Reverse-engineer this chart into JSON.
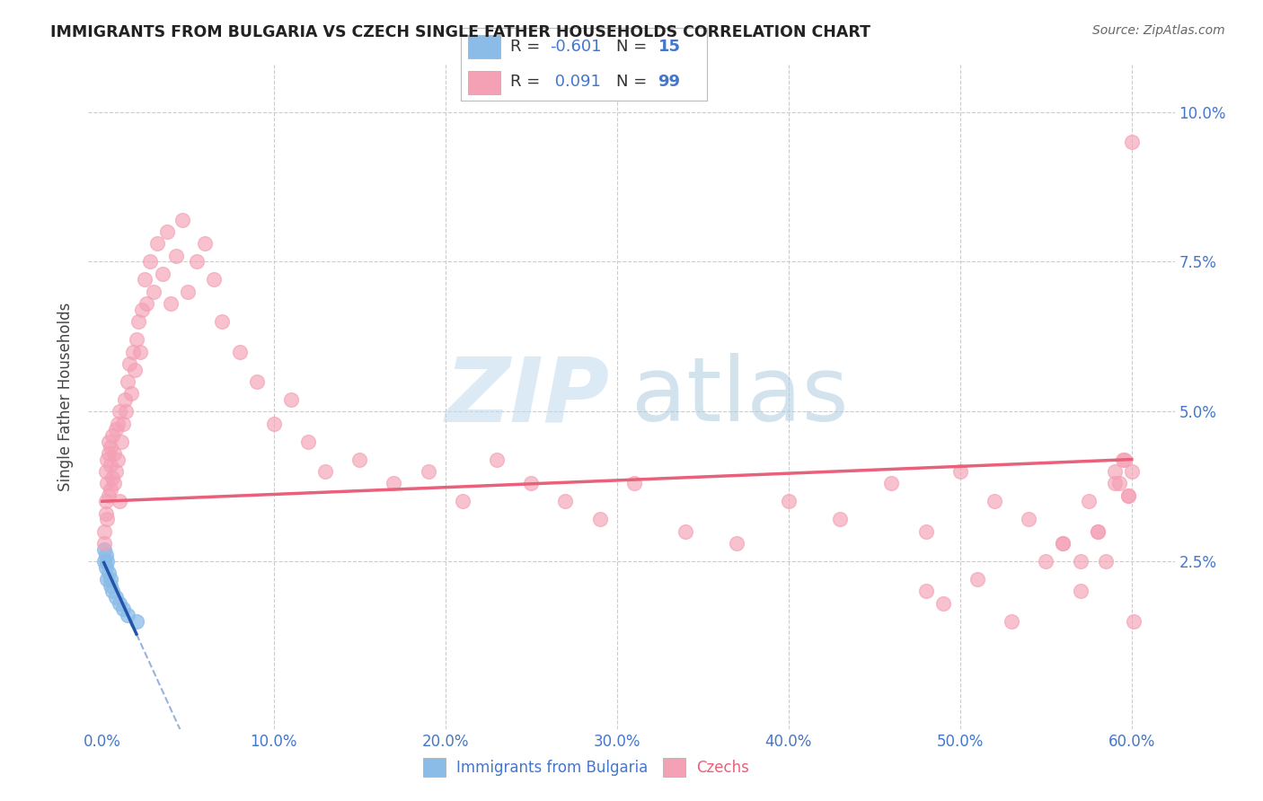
{
  "title": "IMMIGRANTS FROM BULGARIA VS CZECH SINGLE FATHER HOUSEHOLDS CORRELATION CHART",
  "source": "Source: ZipAtlas.com",
  "ylabel": "Single Father Households",
  "x_tick_labels": [
    "0.0%",
    "10.0%",
    "20.0%",
    "30.0%",
    "40.0%",
    "50.0%",
    "60.0%"
  ],
  "x_tick_values": [
    0.0,
    0.1,
    0.2,
    0.3,
    0.4,
    0.5,
    0.6
  ],
  "y_tick_labels": [
    "",
    "2.5%",
    "5.0%",
    "7.5%",
    "10.0%"
  ],
  "y_tick_values": [
    0.0,
    0.025,
    0.05,
    0.075,
    0.1
  ],
  "xlim": [
    -0.008,
    0.625
  ],
  "ylim": [
    -0.003,
    0.108
  ],
  "legend_blue_r": "-0.601",
  "legend_blue_n": "15",
  "legend_pink_r": "0.091",
  "legend_pink_n": "99",
  "blue_color": "#8BBCE8",
  "pink_color": "#F4A0B5",
  "blue_line_color": "#2255AA",
  "pink_line_color": "#E8607A",
  "blue_scatter_x": [
    0.001,
    0.001,
    0.002,
    0.002,
    0.003,
    0.003,
    0.004,
    0.005,
    0.005,
    0.006,
    0.008,
    0.01,
    0.012,
    0.015,
    0.02
  ],
  "blue_scatter_y": [
    0.027,
    0.025,
    0.026,
    0.024,
    0.025,
    0.022,
    0.023,
    0.022,
    0.021,
    0.02,
    0.019,
    0.018,
    0.017,
    0.016,
    0.015
  ],
  "pink_scatter_x": [
    0.001,
    0.001,
    0.002,
    0.002,
    0.002,
    0.003,
    0.003,
    0.003,
    0.004,
    0.004,
    0.004,
    0.005,
    0.005,
    0.005,
    0.006,
    0.006,
    0.007,
    0.007,
    0.008,
    0.008,
    0.009,
    0.009,
    0.01,
    0.01,
    0.011,
    0.012,
    0.013,
    0.014,
    0.015,
    0.016,
    0.017,
    0.018,
    0.019,
    0.02,
    0.021,
    0.022,
    0.023,
    0.025,
    0.026,
    0.028,
    0.03,
    0.032,
    0.035,
    0.038,
    0.04,
    0.043,
    0.047,
    0.05,
    0.055,
    0.06,
    0.065,
    0.07,
    0.08,
    0.09,
    0.1,
    0.11,
    0.12,
    0.13,
    0.15,
    0.17,
    0.19,
    0.21,
    0.23,
    0.25,
    0.27,
    0.29,
    0.31,
    0.34,
    0.37,
    0.4,
    0.43,
    0.46,
    0.48,
    0.5,
    0.52,
    0.54,
    0.56,
    0.57,
    0.58,
    0.59,
    0.595,
    0.598,
    0.6,
    0.48,
    0.49,
    0.51,
    0.53,
    0.55,
    0.56,
    0.57,
    0.575,
    0.58,
    0.585,
    0.59,
    0.593,
    0.596,
    0.598,
    0.6,
    0.601
  ],
  "pink_scatter_y": [
    0.03,
    0.028,
    0.033,
    0.04,
    0.035,
    0.032,
    0.038,
    0.042,
    0.036,
    0.043,
    0.045,
    0.037,
    0.041,
    0.044,
    0.039,
    0.046,
    0.038,
    0.043,
    0.04,
    0.047,
    0.042,
    0.048,
    0.035,
    0.05,
    0.045,
    0.048,
    0.052,
    0.05,
    0.055,
    0.058,
    0.053,
    0.06,
    0.057,
    0.062,
    0.065,
    0.06,
    0.067,
    0.072,
    0.068,
    0.075,
    0.07,
    0.078,
    0.073,
    0.08,
    0.068,
    0.076,
    0.082,
    0.07,
    0.075,
    0.078,
    0.072,
    0.065,
    0.06,
    0.055,
    0.048,
    0.052,
    0.045,
    0.04,
    0.042,
    0.038,
    0.04,
    0.035,
    0.042,
    0.038,
    0.035,
    0.032,
    0.038,
    0.03,
    0.028,
    0.035,
    0.032,
    0.038,
    0.03,
    0.04,
    0.035,
    0.032,
    0.028,
    0.025,
    0.03,
    0.038,
    0.042,
    0.036,
    0.04,
    0.02,
    0.018,
    0.022,
    0.015,
    0.025,
    0.028,
    0.02,
    0.035,
    0.03,
    0.025,
    0.04,
    0.038,
    0.042,
    0.036,
    0.095,
    0.015
  ]
}
